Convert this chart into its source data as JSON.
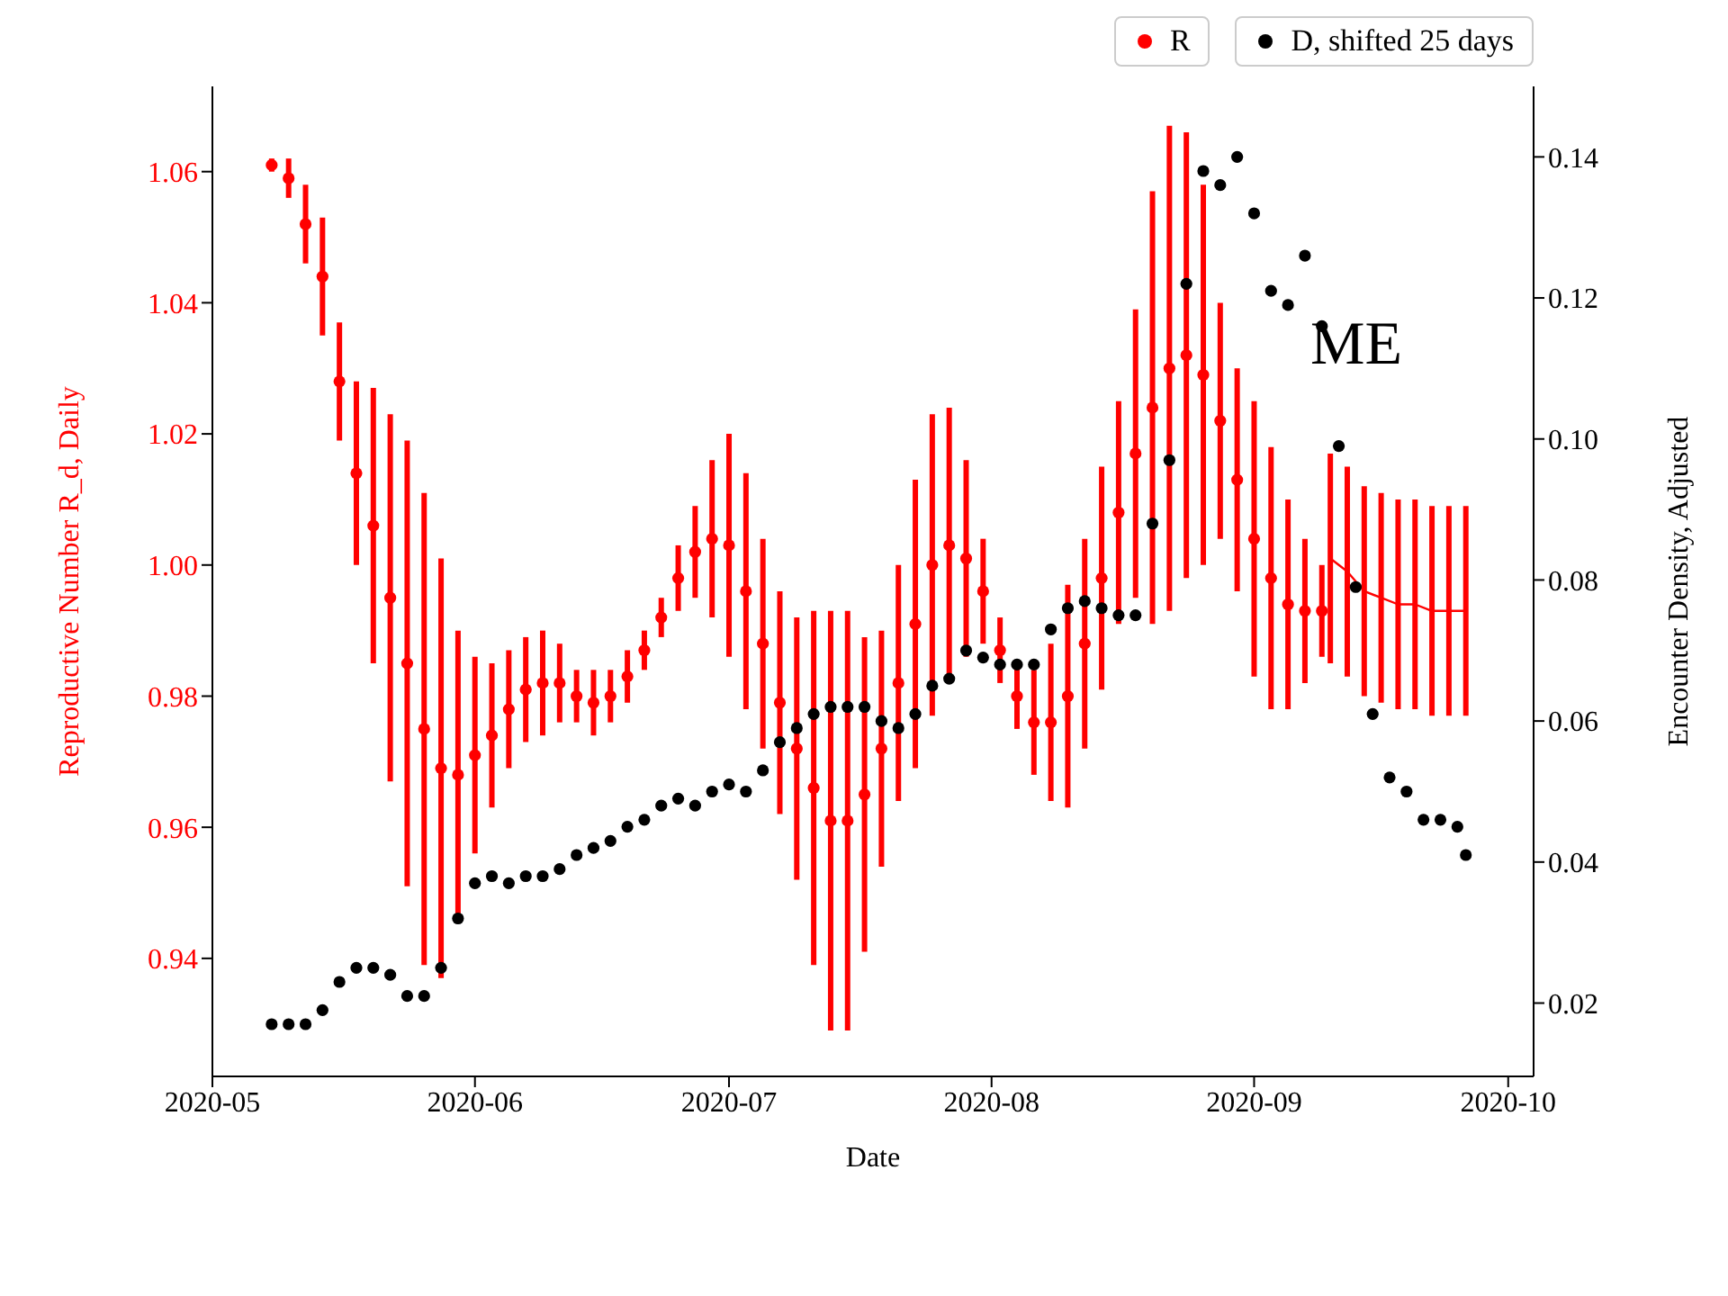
{
  "chart_data": {
    "type": "scatter",
    "xlabel": "Date",
    "ylabel": "Reproductive Number R_d, Daily",
    "y2label": "Encounter Density, Adjusted",
    "annotations": [
      "ME"
    ],
    "xlim": [
      "2020-05-01",
      "2020-10-04"
    ],
    "xticks": [
      "2020-05",
      "2020-06",
      "2020-07",
      "2020-08",
      "2020-09",
      "2020-10"
    ],
    "ylim": [
      0.922,
      1.073
    ],
    "yticks": [
      0.94,
      0.96,
      0.98,
      {
        "value": 1,
        "label": "1.00"
      },
      1.02,
      1.04,
      1.06
    ],
    "y2lim": [
      0.0096,
      0.15
    ],
    "y2ticks": [
      0.02,
      0.04,
      0.06,
      0.08,
      {
        "value": 0.1,
        "label": "0.10"
      },
      0.12,
      0.14
    ],
    "grid": false,
    "legend": "top right",
    "marker": "circle",
    "series": [
      {
        "name": "R",
        "color": "#ff0000",
        "x": [
          "2020-05-08",
          "2020-05-10",
          "2020-05-12",
          "2020-05-14",
          "2020-05-16",
          "2020-05-18",
          "2020-05-20",
          "2020-05-22",
          "2020-05-24",
          "2020-05-26",
          "2020-05-28",
          "2020-05-30",
          "2020-06-01",
          "2020-06-03",
          "2020-06-05",
          "2020-06-07",
          "2020-06-09",
          "2020-06-11",
          "2020-06-13",
          "2020-06-15",
          "2020-06-17",
          "2020-06-19",
          "2020-06-21",
          "2020-06-23",
          "2020-06-25",
          "2020-06-27",
          "2020-06-29",
          "2020-07-01",
          "2020-07-03",
          "2020-07-05",
          "2020-07-07",
          "2020-07-09",
          "2020-07-11",
          "2020-07-13",
          "2020-07-15",
          "2020-07-17",
          "2020-07-19",
          "2020-07-21",
          "2020-07-23",
          "2020-07-25",
          "2020-07-27",
          "2020-07-29",
          "2020-07-31",
          "2020-08-02",
          "2020-08-04",
          "2020-08-06",
          "2020-08-08",
          "2020-08-10",
          "2020-08-12",
          "2020-08-14",
          "2020-08-16",
          "2020-08-18",
          "2020-08-20",
          "2020-08-22",
          "2020-08-24",
          "2020-08-26",
          "2020-08-28",
          "2020-08-30",
          "2020-09-01",
          "2020-09-03",
          "2020-09-05",
          "2020-09-07",
          "2020-09-09"
        ],
        "values": [
          1.061,
          1.059,
          1.052,
          1.044,
          1.028,
          1.014,
          1.006,
          0.995,
          0.985,
          0.975,
          0.969,
          0.968,
          0.971,
          0.974,
          0.978,
          0.981,
          0.982,
          0.982,
          0.98,
          0.979,
          0.98,
          0.983,
          0.987,
          0.992,
          0.998,
          1.002,
          1.004,
          1.003,
          0.996,
          0.988,
          0.979,
          0.972,
          0.966,
          0.961,
          0.961,
          0.965,
          0.972,
          0.982,
          0.991,
          1.0,
          1.003,
          1.001,
          0.996,
          0.987,
          0.98,
          0.976,
          0.976,
          0.98,
          0.988,
          0.998,
          1.008,
          1.017,
          1.024,
          1.03,
          1.032,
          1.029,
          1.022,
          1.013,
          1.004,
          0.998,
          0.994,
          0.993,
          0.993
        ],
        "errors": [
          0.001,
          0.003,
          0.006,
          0.009,
          0.009,
          0.014,
          0.021,
          0.028,
          0.034,
          0.036,
          0.032,
          0.022,
          0.015,
          0.011,
          0.009,
          0.008,
          0.008,
          0.006,
          0.004,
          0.005,
          0.004,
          0.004,
          0.003,
          0.003,
          0.005,
          0.007,
          0.012,
          0.017,
          0.018,
          0.016,
          0.017,
          0.02,
          0.027,
          0.032,
          0.032,
          0.024,
          0.018,
          0.018,
          0.022,
          0.023,
          0.021,
          0.015,
          0.008,
          0.005,
          0.005,
          0.008,
          0.012,
          0.017,
          0.016,
          0.017,
          0.017,
          0.022,
          0.033,
          0.037,
          0.034,
          0.029,
          0.018,
          0.017,
          0.021,
          0.02,
          0.016,
          0.011,
          0.007
        ]
      },
      {
        "type": "line",
        "color": "#ff0000",
        "marker": "none",
        "x": [
          "2020-09-10",
          "2020-09-12",
          "2020-09-14",
          "2020-09-16",
          "2020-09-18",
          "2020-09-20",
          "2020-09-22",
          "2020-09-24",
          "2020-09-26"
        ],
        "values": [
          1.001,
          0.999,
          0.996,
          0.995,
          0.994,
          0.994,
          0.993,
          0.993,
          0.993
        ],
        "errors": [
          0.016,
          0.016,
          0.016,
          0.016,
          0.016,
          0.016,
          0.016,
          0.016,
          0.016
        ]
      },
      {
        "name": "D, shifted 25 days",
        "color": "#000000",
        "axis": "y2",
        "x": [
          "2020-05-08",
          "2020-05-10",
          "2020-05-12",
          "2020-05-14",
          "2020-05-16",
          "2020-05-18",
          "2020-05-20",
          "2020-05-22",
          "2020-05-24",
          "2020-05-26",
          "2020-05-28",
          "2020-05-30",
          "2020-06-01",
          "2020-06-03",
          "2020-06-05",
          "2020-06-07",
          "2020-06-09",
          "2020-06-11",
          "2020-06-13",
          "2020-06-15",
          "2020-06-17",
          "2020-06-19",
          "2020-06-21",
          "2020-06-23",
          "2020-06-25",
          "2020-06-27",
          "2020-06-29",
          "2020-07-01",
          "2020-07-03",
          "2020-07-05",
          "2020-07-07",
          "2020-07-09",
          "2020-07-11",
          "2020-07-13",
          "2020-07-15",
          "2020-07-17",
          "2020-07-19",
          "2020-07-21",
          "2020-07-23",
          "2020-07-25",
          "2020-07-27",
          "2020-07-29",
          "2020-07-31",
          "2020-08-02",
          "2020-08-04",
          "2020-08-06",
          "2020-08-08",
          "2020-08-10",
          "2020-08-12",
          "2020-08-14",
          "2020-08-16",
          "2020-08-18",
          "2020-08-20",
          "2020-08-22",
          "2020-08-24",
          "2020-08-26",
          "2020-08-28",
          "2020-08-30",
          "2020-09-01",
          "2020-09-03",
          "2020-09-05",
          "2020-09-07",
          "2020-09-09",
          "2020-09-11",
          "2020-09-13",
          "2020-09-15",
          "2020-09-17",
          "2020-09-19",
          "2020-09-21",
          "2020-09-23",
          "2020-09-25",
          "2020-09-26"
        ],
        "values": [
          0.017,
          0.017,
          0.017,
          0.019,
          0.023,
          0.025,
          0.025,
          0.024,
          0.021,
          0.021,
          0.025,
          0.032,
          0.037,
          0.038,
          0.037,
          0.038,
          0.038,
          0.039,
          0.041,
          0.042,
          0.043,
          0.045,
          0.046,
          0.048,
          0.049,
          0.048,
          0.05,
          0.051,
          0.05,
          0.053,
          0.057,
          0.059,
          0.061,
          0.062,
          0.062,
          0.062,
          0.06,
          0.059,
          0.061,
          0.065,
          0.066,
          0.07,
          0.069,
          0.068,
          0.068,
          0.068,
          0.073,
          0.076,
          0.077,
          0.076,
          0.075,
          0.075,
          0.088,
          0.097,
          0.122,
          0.138,
          0.136,
          0.14,
          0.132,
          0.121,
          0.119,
          0.126,
          0.116,
          0.099,
          0.079,
          0.061,
          0.052,
          0.05,
          0.046,
          0.046,
          0.045,
          0.041
        ]
      }
    ]
  }
}
